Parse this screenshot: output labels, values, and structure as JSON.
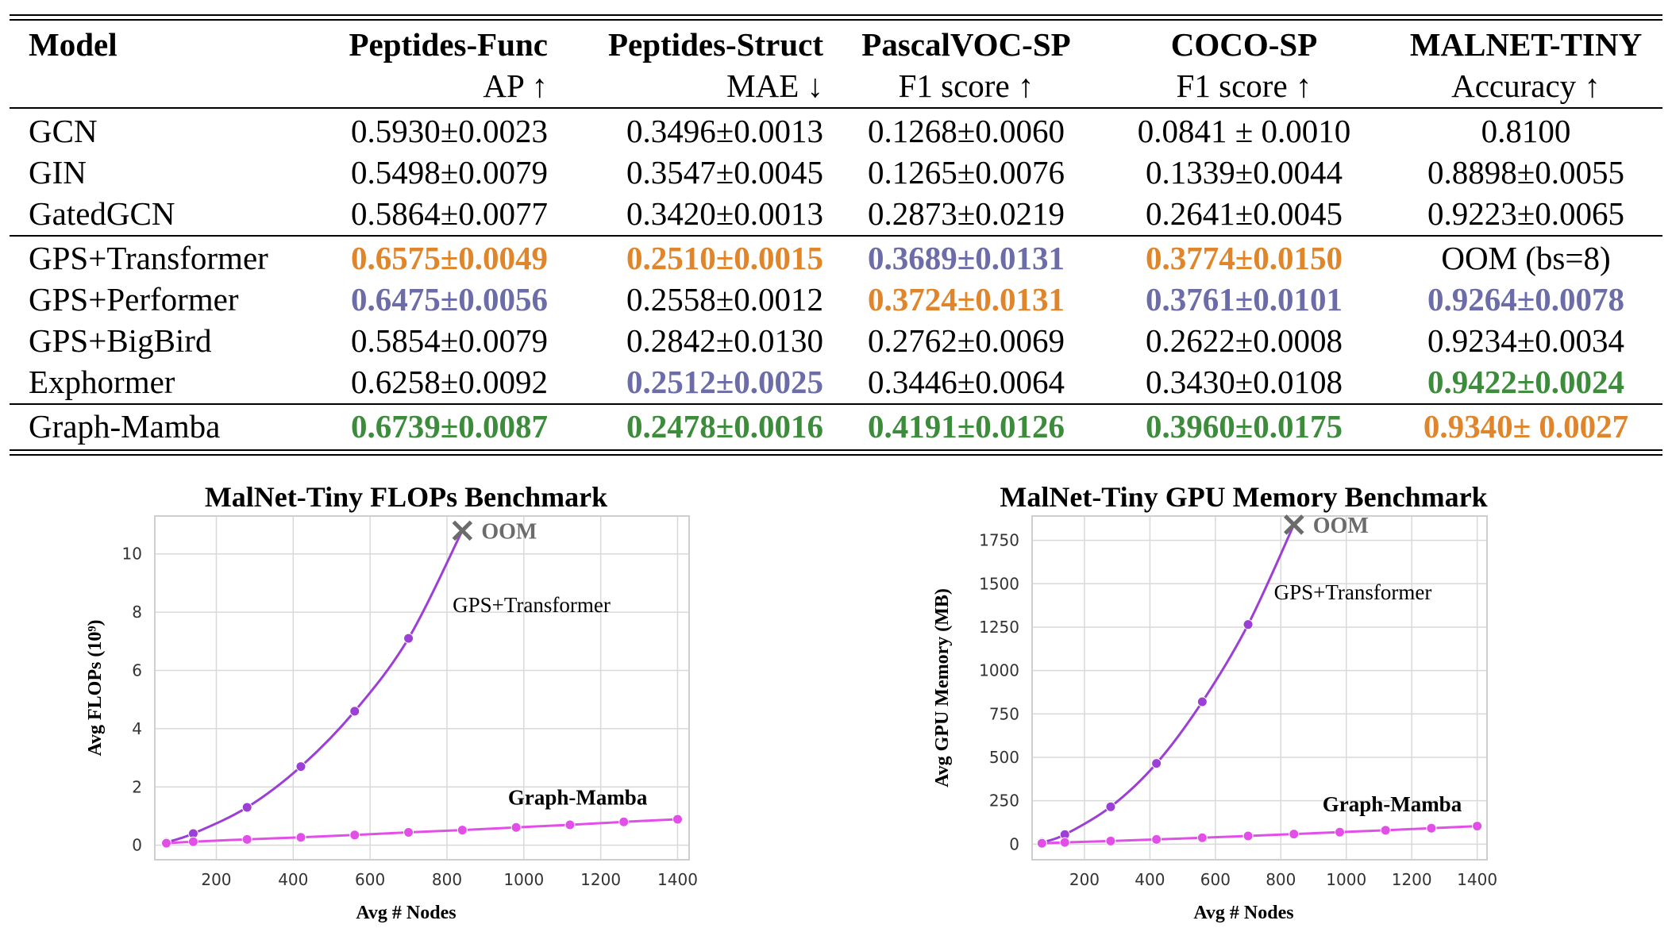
{
  "table": {
    "columns": [
      {
        "name": "Model",
        "metric": ""
      },
      {
        "name": "Peptides-Func",
        "metric": "AP ↑"
      },
      {
        "name": "Peptides-Struct",
        "metric": "MAE ↓"
      },
      {
        "name": "PascalVOC-SP",
        "metric": "F1 score ↑"
      },
      {
        "name": "COCO-SP",
        "metric": "F1 score ↑"
      },
      {
        "name": "MALNET-TINY",
        "metric": "Accuracy ↑"
      }
    ],
    "groups": [
      [
        {
          "model": "GCN",
          "cells": [
            "0.5930±0.0023",
            "0.3496±0.0013",
            "0.1268±0.0060",
            "0.0841 ± 0.0010",
            "0.8100"
          ],
          "rank": [
            0,
            0,
            0,
            0,
            0
          ]
        },
        {
          "model": "GIN",
          "cells": [
            "0.5498±0.0079",
            "0.3547±0.0045",
            "0.1265±0.0076",
            "0.1339±0.0044",
            "0.8898±0.0055"
          ],
          "rank": [
            0,
            0,
            0,
            0,
            0
          ]
        },
        {
          "model": "GatedGCN",
          "cells": [
            "0.5864±0.0077",
            "0.3420±0.0013",
            "0.2873±0.0219",
            "0.2641±0.0045",
            "0.9223±0.0065"
          ],
          "rank": [
            0,
            0,
            0,
            0,
            0
          ]
        }
      ],
      [
        {
          "model": "GPS+Transformer",
          "cells": [
            "0.6575±0.0049",
            "0.2510±0.0015",
            "0.3689±0.0131",
            "0.3774±0.0150",
            "OOM (bs=8)"
          ],
          "rank": [
            2,
            2,
            3,
            2,
            0
          ]
        },
        {
          "model": "GPS+Performer",
          "cells": [
            "0.6475±0.0056",
            "0.2558±0.0012",
            "0.3724±0.0131",
            "0.3761±0.0101",
            "0.9264±0.0078"
          ],
          "rank": [
            3,
            0,
            2,
            3,
            3
          ]
        },
        {
          "model": "GPS+BigBird",
          "cells": [
            "0.5854±0.0079",
            "0.2842±0.0130",
            "0.2762±0.0069",
            "0.2622±0.0008",
            "0.9234±0.0034"
          ],
          "rank": [
            0,
            0,
            0,
            0,
            0
          ]
        },
        {
          "model": "Exphormer",
          "cells": [
            "0.6258±0.0092",
            "0.2512±0.0025",
            "0.3446±0.0064",
            "0.3430±0.0108",
            "0.9422±0.0024"
          ],
          "rank": [
            0,
            3,
            0,
            0,
            1
          ]
        }
      ],
      [
        {
          "model": "Graph-Mamba",
          "cells": [
            "0.6739±0.0087",
            "0.2478±0.0016",
            "0.4191±0.0126",
            "0.3960±0.0175",
            "0.9340± 0.0027"
          ],
          "rank": [
            1,
            1,
            1,
            1,
            2
          ]
        }
      ]
    ],
    "colors": {
      "rank1": "#3c8c3c",
      "rank2": "#e0852a",
      "rank3": "#6c6ca8"
    }
  },
  "chart_data": [
    {
      "type": "line",
      "title": "MalNet-Tiny FLOPs Benchmark",
      "xlabel": "Avg # Nodes",
      "ylabel": "Avg FLOPs (10⁹)",
      "xlim": [
        40,
        1430
      ],
      "ylim": [
        -0.5,
        11.3
      ],
      "xticks": [
        200,
        400,
        600,
        800,
        1000,
        1200,
        1400
      ],
      "yticks": [
        0,
        2,
        4,
        6,
        8,
        10
      ],
      "grid": true,
      "series": [
        {
          "name": "GPS+Transformer",
          "color": "#9b3fd6",
          "label_bold": false,
          "x": [
            70,
            140,
            280,
            420,
            560,
            700
          ],
          "y": [
            0.1,
            0.4,
            1.3,
            2.7,
            4.6,
            7.1
          ],
          "end": {
            "x": 840,
            "y": 10.8
          }
        },
        {
          "name": "Graph-Mamba",
          "color": "#e24fe8",
          "label_bold": true,
          "x": [
            70,
            140,
            280,
            420,
            560,
            700,
            840,
            980,
            1120,
            1260,
            1400
          ],
          "y": [
            0.07,
            0.12,
            0.2,
            0.27,
            0.35,
            0.44,
            0.52,
            0.61,
            0.7,
            0.8,
            0.89
          ]
        }
      ],
      "annotation": {
        "text": "OOM",
        "x": 840,
        "y": 10.8,
        "color": "#6b6b6b"
      },
      "labels": [
        {
          "text": "GPS+Transformer",
          "x": 1020,
          "y": 8.0
        },
        {
          "text": "Graph-Mamba",
          "x": 1140,
          "y": 1.4
        }
      ]
    },
    {
      "type": "line",
      "title": "MalNet-Tiny GPU Memory Benchmark",
      "xlabel": "Avg # Nodes",
      "ylabel": "Avg GPU Memory (MB)",
      "xlim": [
        40,
        1430
      ],
      "ylim": [
        -90,
        1890
      ],
      "xticks": [
        200,
        400,
        600,
        800,
        1000,
        1200,
        1400
      ],
      "yticks": [
        0,
        250,
        500,
        750,
        1000,
        1250,
        1500,
        1750
      ],
      "grid": true,
      "series": [
        {
          "name": "GPS+Transformer",
          "color": "#9b3fd6",
          "label_bold": false,
          "x": [
            70,
            140,
            280,
            420,
            560,
            700
          ],
          "y": [
            10,
            55,
            215,
            465,
            820,
            1265
          ],
          "end": {
            "x": 840,
            "y": 1840
          }
        },
        {
          "name": "Graph-Mamba",
          "color": "#e24fe8",
          "label_bold": true,
          "x": [
            70,
            140,
            280,
            420,
            560,
            700,
            840,
            980,
            1120,
            1260,
            1400
          ],
          "y": [
            5,
            10,
            18,
            27,
            37,
            47,
            58,
            69,
            80,
            92,
            104
          ]
        }
      ],
      "annotation": {
        "text": "OOM",
        "x": 840,
        "y": 1840,
        "color": "#6b6b6b"
      },
      "labels": [
        {
          "text": "GPS+Transformer",
          "x": 1020,
          "y": 1410
        },
        {
          "text": "Graph-Mamba",
          "x": 1140,
          "y": 190
        }
      ]
    }
  ]
}
